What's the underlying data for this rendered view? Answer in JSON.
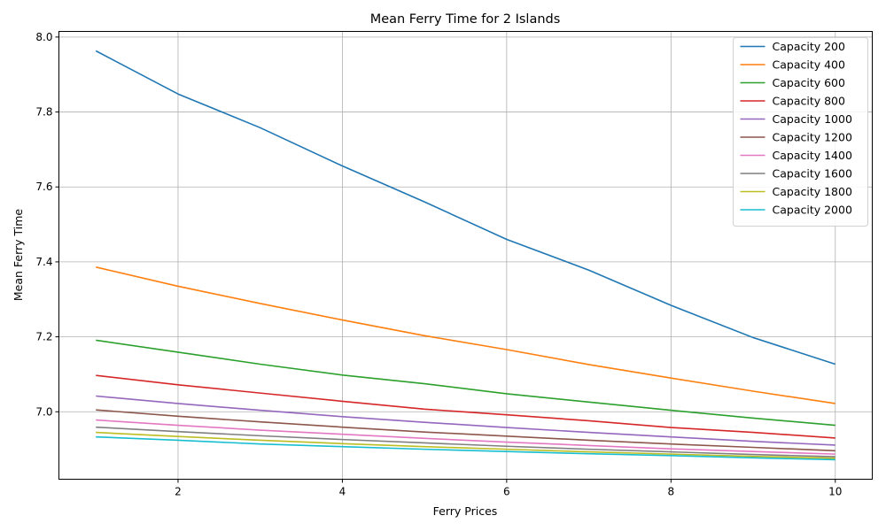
{
  "chart_data": {
    "type": "line",
    "title": "Mean Ferry Time for 2 Islands",
    "xlabel": "Ferry Prices",
    "ylabel": "Mean Ferry Time",
    "xlim": [
      0.55,
      10.45
    ],
    "ylim": [
      6.82,
      8.015
    ],
    "xticks": [
      2,
      4,
      6,
      8,
      10
    ],
    "xtick_labels": [
      "2",
      "4",
      "6",
      "8",
      "10"
    ],
    "yticks": [
      7.0,
      7.2,
      7.4,
      7.6,
      7.8,
      8.0
    ],
    "ytick_labels": [
      "7.0",
      "7.2",
      "7.4",
      "7.6",
      "7.8",
      "8.0"
    ],
    "grid": true,
    "legend_position": "top-right",
    "x": [
      1,
      2,
      3,
      4,
      5,
      6,
      7,
      8,
      9,
      10
    ],
    "series": [
      {
        "name": "Capacity 200",
        "color": "#1f77b4",
        "values": [
          7.963,
          7.848,
          7.758,
          7.656,
          7.56,
          7.46,
          7.378,
          7.284,
          7.198,
          7.127
        ]
      },
      {
        "name": "Capacity 400",
        "color": "#ff7f0e",
        "values": [
          7.386,
          7.335,
          7.289,
          7.245,
          7.203,
          7.166,
          7.126,
          7.09,
          7.055,
          7.022
        ]
      },
      {
        "name": "Capacity 600",
        "color": "#2ca02c",
        "values": [
          7.191,
          7.159,
          7.127,
          7.098,
          7.075,
          7.048,
          7.026,
          7.004,
          6.983,
          6.964
        ]
      },
      {
        "name": "Capacity 800",
        "color": "#d62728",
        "values": [
          7.097,
          7.072,
          7.05,
          7.028,
          7.007,
          6.992,
          6.976,
          6.958,
          6.945,
          6.93
        ]
      },
      {
        "name": "Capacity 1000",
        "color": "#9467bd",
        "values": [
          7.042,
          7.022,
          7.004,
          6.987,
          6.972,
          6.958,
          6.945,
          6.933,
          6.921,
          6.911
        ]
      },
      {
        "name": "Capacity 1200",
        "color": "#8c564b",
        "values": [
          7.005,
          6.988,
          6.973,
          6.959,
          6.946,
          6.935,
          6.924,
          6.914,
          6.905,
          6.896
        ]
      },
      {
        "name": "Capacity 1400",
        "color": "#e377c2",
        "values": [
          6.978,
          6.964,
          6.951,
          6.94,
          6.929,
          6.919,
          6.91,
          6.901,
          6.894,
          6.887
        ]
      },
      {
        "name": "Capacity 1600",
        "color": "#7f7f7f",
        "values": [
          6.959,
          6.947,
          6.936,
          6.926,
          6.917,
          6.908,
          6.9,
          6.893,
          6.886,
          6.88
        ]
      },
      {
        "name": "Capacity 1800",
        "color": "#bcbd22",
        "values": [
          6.945,
          6.934,
          6.924,
          6.915,
          6.907,
          6.9,
          6.893,
          6.887,
          6.881,
          6.876
        ]
      },
      {
        "name": "Capacity 2000",
        "color": "#17becf",
        "values": [
          6.933,
          6.924,
          6.914,
          6.907,
          6.9,
          6.894,
          6.888,
          6.883,
          6.877,
          6.872
        ]
      }
    ]
  }
}
